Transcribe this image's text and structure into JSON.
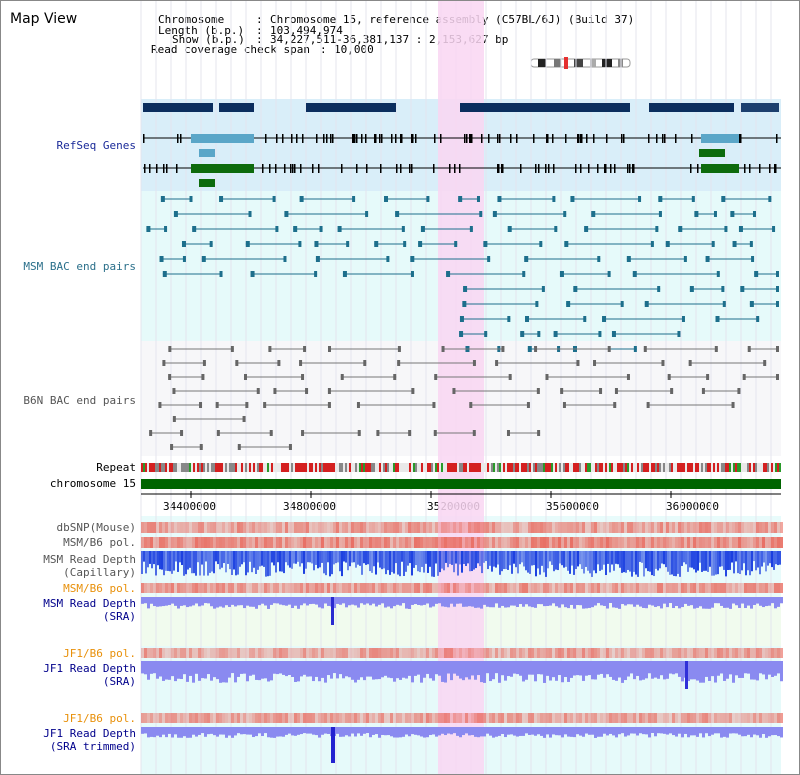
{
  "window": {
    "title": "Map View"
  },
  "info": {
    "chromosome_key": "Chromosome",
    "chromosome_val": "Chromosome 15, reference assembly (C57BL/6J) (Build 37)",
    "length_key": "Length (b.p.)",
    "length_val": "103,494,974",
    "show_key": "Show (b.p.)",
    "show_val": "34,227,511-36,381,137 : 2,153,627 bp",
    "span_key": "Read coverage check span",
    "span_val": "10,000"
  },
  "tracks": {
    "refseq": "RefSeq Genes",
    "msm_bac": "MSM BAC end pairs",
    "b6n_bac": "B6N BAC end pairs",
    "repeat": "Repeat",
    "chromosome": "chromosome 15",
    "dbsnp": "dbSNP(Mouse)",
    "msm_b6_pol_1": "MSM/B6 pol.",
    "msm_read_depth_cap_1": "MSM Read Depth",
    "msm_read_depth_cap_2": "(Capillary)",
    "msm_b6_pol_2": "MSM/B6 pol.",
    "msm_read_depth_sra_1": "MSM Read Depth",
    "msm_read_depth_sra_2": "(SRA)",
    "jf1_b6_pol_1": "JF1/B6 pol.",
    "jf1_read_depth_sra_1": "JF1 Read Depth",
    "jf1_read_depth_sra_2": "(SRA)",
    "jf1_b6_pol_2": "JF1/B6 pol.",
    "jf1_read_depth_trim_1": "JF1 Read Depth",
    "jf1_read_depth_trim_2": "(SRA trimmed)"
  },
  "axis": {
    "ticks": [
      "34400000",
      "34800000",
      "35200000",
      "35600000",
      "36000000"
    ]
  },
  "colors": {
    "refseq_bg": "#d9eef9",
    "bac_bg": "#e6fafa",
    "b6n_bg": "#f7f7f9",
    "highlight": "#f9d6f2",
    "gene_dark": "#0b2e5e",
    "gene_mid": "#5aa6c8",
    "gene_green": "#0d6b0d",
    "msm_bac_line": "#1d6f8c",
    "b6n_line": "#777777",
    "chromosome_bar": "#006400",
    "snp_red": "#e8685c",
    "capillary_blue": "#1a3fe0",
    "sra_blue": "#8a8af0",
    "sra_msm_bg": "#f1fbee"
  }
}
